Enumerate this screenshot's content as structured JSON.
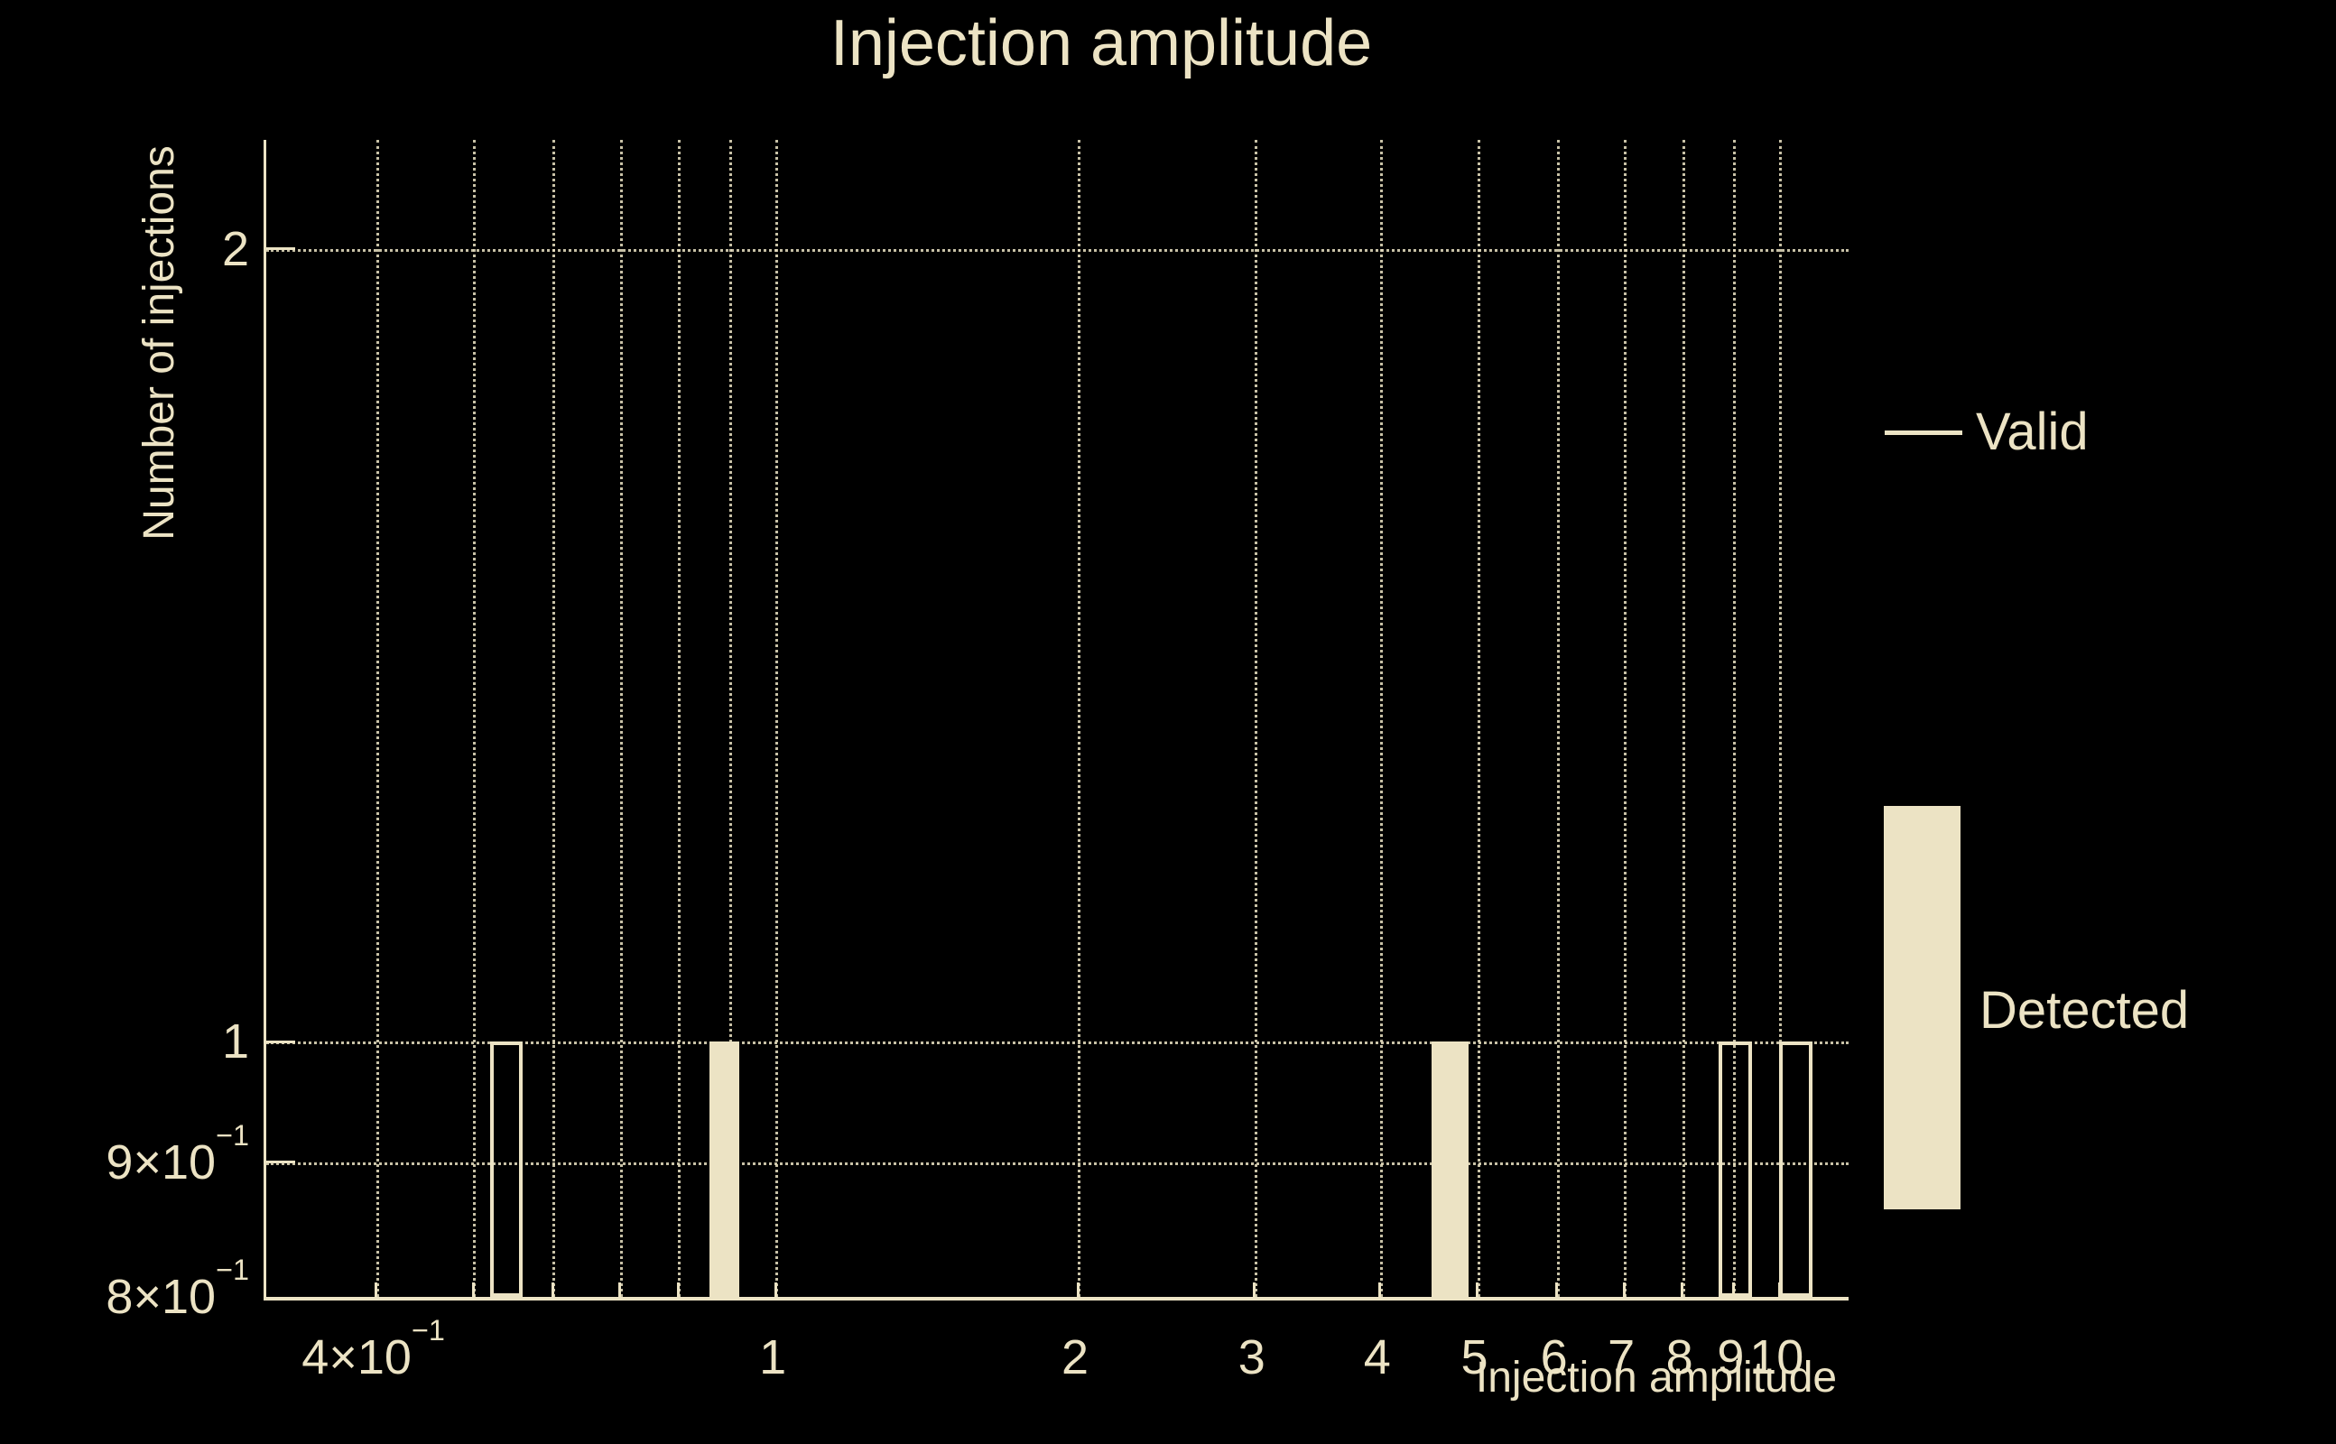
{
  "colors": {
    "background": "#000000",
    "foreground": "#ece3c4"
  },
  "chart_data": {
    "type": "bar",
    "subtype": "histogram",
    "title": "Injection amplitude",
    "xlabel": "Injection amplitude",
    "ylabel": "Number of injections",
    "x_scale": "log",
    "y_scale": "log",
    "xlim": [
      0.311,
      11.72
    ],
    "ylim": [
      0.8,
      2.2
    ],
    "grid": "dotted",
    "legend_position": "right",
    "x_gridline_values": [
      0.4,
      0.5,
      0.6,
      0.7,
      0.8,
      0.9,
      1,
      2,
      3,
      4,
      5,
      6,
      7,
      8,
      9,
      10
    ],
    "y_gridline_values": [
      2,
      1,
      0.9
    ],
    "x_ticks": [
      {
        "value": 0.4,
        "base": "4×10",
        "sup": "−1"
      },
      {
        "value": 1,
        "base": "1"
      },
      {
        "value": 2,
        "base": "2"
      },
      {
        "value": 3,
        "base": "3"
      },
      {
        "value": 4,
        "base": "4"
      },
      {
        "value": 5,
        "base": "5"
      },
      {
        "value": 6,
        "base": "6"
      },
      {
        "value": 7,
        "base": "7"
      },
      {
        "value": 8,
        "base": "8"
      },
      {
        "value": 9,
        "base": "9"
      },
      {
        "value": 10,
        "base": "10"
      }
    ],
    "y_ticks": [
      {
        "value": 2,
        "base": "2"
      },
      {
        "value": 1,
        "base": "1"
      },
      {
        "value": 0.9,
        "base": "9×10",
        "sup": "−1"
      },
      {
        "value": 0.8,
        "base": "8×10",
        "sup": "−1"
      }
    ],
    "series": [
      {
        "name": "Valid",
        "style": "step-outline",
        "bins": [
          {
            "from": 0.52,
            "to": 0.56,
            "count": 1
          },
          {
            "from": 8.7,
            "to": 9.4,
            "count": 1
          },
          {
            "from": 10.0,
            "to": 10.8,
            "count": 1
          }
        ]
      },
      {
        "name": "Detected",
        "style": "filled",
        "bins": [
          {
            "from": 0.86,
            "to": 0.92,
            "count": 1
          },
          {
            "from": 4.5,
            "to": 4.9,
            "count": 1
          }
        ]
      }
    ],
    "legend": {
      "entries": [
        {
          "label": "Valid",
          "marker": "line"
        },
        {
          "label": "Detected",
          "marker": "patch"
        }
      ]
    }
  }
}
